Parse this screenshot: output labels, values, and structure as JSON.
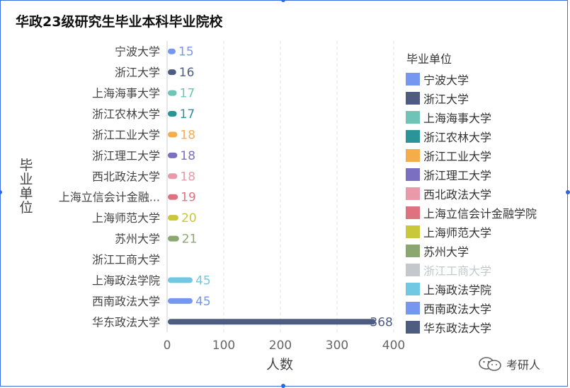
{
  "title": "华政23级研究生毕业本科毕业院校",
  "watermark": {
    "text": "考研人",
    "icon": "wechat-icon"
  },
  "chart_data": {
    "type": "bar",
    "orientation": "horizontal",
    "title": "华政23级研究生毕业本科毕业院校",
    "xlabel": "人数",
    "ylabel": "毕业单位",
    "xlim": [
      0,
      400
    ],
    "xticks": [
      0,
      100,
      200,
      300,
      400
    ],
    "grid": true,
    "legend_title": "毕业单位",
    "legend_position": "right",
    "categories": [
      "宁波大学",
      "浙江大学",
      "上海海事大学",
      "浙江农林大学",
      "浙江工业大学",
      "浙江理工大学",
      "西北政法大学",
      "上海立信会计金融...",
      "上海师范大学",
      "苏州大学",
      "浙江工商大学",
      "上海政法学院",
      "西南政法大学",
      "华东政法大学"
    ],
    "values": [
      15,
      16,
      17,
      17,
      18,
      18,
      18,
      19,
      20,
      21,
      null,
      45,
      45,
      368
    ],
    "value_labels": [
      "15",
      "16",
      "17",
      "17",
      "18",
      "18",
      "18",
      "19",
      "20",
      "21",
      "",
      "45",
      "45",
      "368"
    ],
    "colors": [
      "#7597ef",
      "#4d5c80",
      "#6fc4b8",
      "#2a9499",
      "#f5ad4a",
      "#7b6fc2",
      "#e89aa8",
      "#e0727f",
      "#c9c73a",
      "#8aa86e",
      "#c4c7cc",
      "#70c8e3",
      "#7597ef",
      "#4d5c80"
    ],
    "legend": [
      {
        "name": "宁波大学",
        "color": "#7597ef",
        "active": true
      },
      {
        "name": "浙江大学",
        "color": "#4d5c80",
        "active": true
      },
      {
        "name": "上海海事大学",
        "color": "#6fc4b8",
        "active": true
      },
      {
        "name": "浙江农林大学",
        "color": "#2a9499",
        "active": true
      },
      {
        "name": "浙江工业大学",
        "color": "#f5ad4a",
        "active": true
      },
      {
        "name": "浙江理工大学",
        "color": "#7b6fc2",
        "active": true
      },
      {
        "name": "西北政法大学",
        "color": "#e89aa8",
        "active": true
      },
      {
        "name": "上海立信会计金融学院",
        "color": "#e0727f",
        "active": true
      },
      {
        "name": "上海师范大学",
        "color": "#c9c73a",
        "active": true
      },
      {
        "name": "苏州大学",
        "color": "#8aa86e",
        "active": true
      },
      {
        "name": "浙江工商大学",
        "color": "#c4c7cc",
        "active": false
      },
      {
        "name": "上海政法学院",
        "color": "#70c8e3",
        "active": true
      },
      {
        "name": "西南政法大学",
        "color": "#7597ef",
        "active": true
      },
      {
        "name": "华东政法大学",
        "color": "#4d5c80",
        "active": true
      }
    ]
  }
}
